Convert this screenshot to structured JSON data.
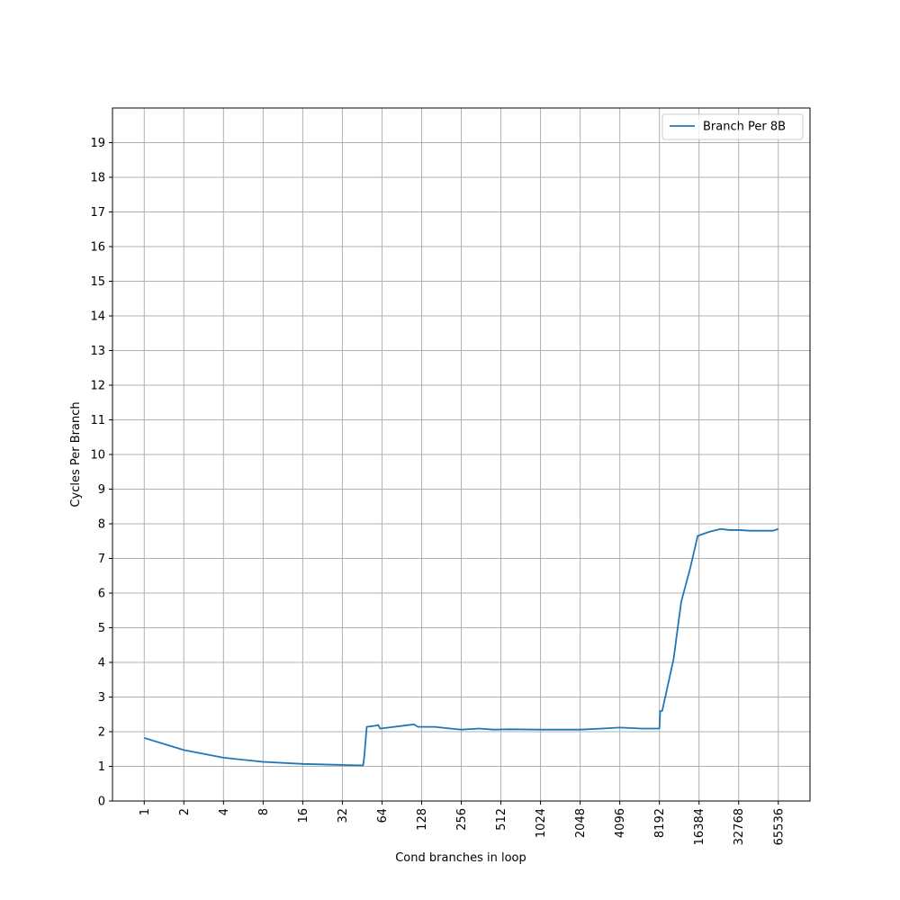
{
  "chart_data": {
    "type": "line",
    "xlabel": "Cond branches in loop",
    "ylabel": "Cycles Per Branch",
    "xscale": "log2",
    "grid": true,
    "legend": "upper right",
    "xlim": [
      0.574,
      114104
    ],
    "ylim": [
      0,
      20
    ],
    "xticks": [
      1,
      2,
      4,
      8,
      16,
      32,
      64,
      128,
      256,
      512,
      1024,
      2048,
      4096,
      8192,
      16384,
      32768,
      65536
    ],
    "yticks": [
      0,
      1,
      2,
      3,
      4,
      5,
      6,
      7,
      8,
      9,
      10,
      11,
      12,
      13,
      14,
      15,
      16,
      17,
      18,
      19
    ],
    "x": [
      1,
      2,
      4,
      8,
      16,
      32,
      44,
      46,
      47,
      49,
      56,
      60,
      62,
      72,
      96,
      112,
      120,
      160,
      200,
      256,
      350,
      450,
      600,
      1024,
      2048,
      3000,
      4096,
      6000,
      8100,
      8192,
      8300,
      8600,
      10500,
      12000,
      14000,
      16000,
      18000,
      20000,
      24000,
      28000,
      32768,
      40000,
      50000,
      60000,
      65536
    ],
    "series": [
      {
        "name": "Branch Per 8B",
        "color": "#1f77b4",
        "values": [
          1.82,
          1.47,
          1.25,
          1.13,
          1.07,
          1.04,
          1.03,
          1.03,
          1.3,
          2.14,
          2.17,
          2.19,
          2.09,
          2.12,
          2.18,
          2.21,
          2.14,
          2.14,
          2.1,
          2.06,
          2.09,
          2.06,
          2.07,
          2.06,
          2.06,
          2.09,
          2.12,
          2.09,
          2.09,
          2.1,
          2.6,
          2.6,
          4.1,
          5.75,
          6.7,
          7.65,
          7.72,
          7.78,
          7.85,
          7.82,
          7.82,
          7.8,
          7.8,
          7.8,
          7.85
        ]
      }
    ]
  }
}
